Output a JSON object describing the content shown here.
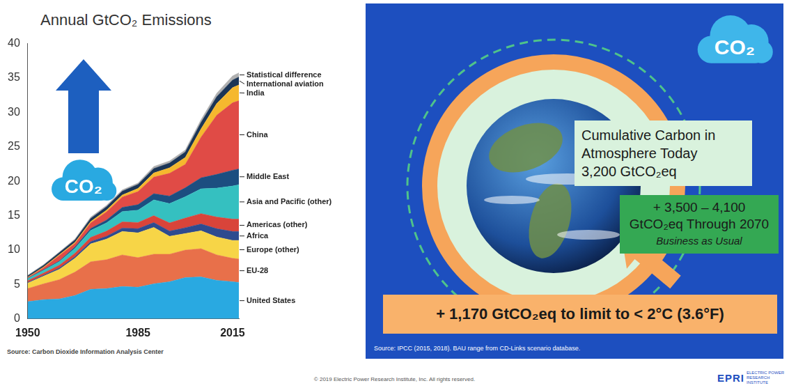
{
  "chart_data": {
    "type": "area",
    "title": "Annual GtCO₂ Emissions",
    "source": "Source: Carbon Dioxide Information Analysis Center",
    "annotations": [
      "CO₂"
    ],
    "stacked": true,
    "grid": false,
    "legend": "right",
    "x": [
      1950,
      1955,
      1960,
      1965,
      1970,
      1975,
      1980,
      1985,
      1990,
      1995,
      2000,
      2005,
      2010,
      2015,
      2017
    ],
    "xlim": [
      1950,
      2017
    ],
    "xticks": [
      1950,
      1985,
      2015
    ],
    "ylim": [
      0,
      40
    ],
    "yticks": [
      0,
      5,
      10,
      15,
      20,
      25,
      30,
      35,
      40
    ],
    "series": [
      {
        "name": "United States",
        "color": "#29a9e1",
        "values": [
          2.5,
          2.8,
          2.9,
          3.4,
          4.3,
          4.4,
          4.7,
          4.6,
          5.1,
          5.4,
          6.0,
          6.1,
          5.6,
          5.4,
          5.3
        ]
      },
      {
        "name": "EU-28",
        "color": "#e8704a",
        "values": [
          1.9,
          2.3,
          2.8,
          3.4,
          4.0,
          4.2,
          4.6,
          4.3,
          4.3,
          4.0,
          4.0,
          4.1,
          3.7,
          3.4,
          3.4
        ]
      },
      {
        "name": "Europe (other)",
        "color": "#f7d547",
        "values": [
          0.8,
          1.1,
          1.5,
          2.0,
          2.6,
          3.0,
          3.4,
          3.6,
          3.9,
          2.6,
          2.4,
          2.6,
          2.6,
          2.6,
          2.7
        ]
      },
      {
        "name": "Africa",
        "color": "#2e4b8f",
        "values": [
          0.1,
          0.15,
          0.2,
          0.25,
          0.35,
          0.4,
          0.5,
          0.6,
          0.7,
          0.75,
          0.85,
          1.0,
          1.2,
          1.3,
          1.3
        ]
      },
      {
        "name": "Americas (other)",
        "color": "#d9443a",
        "values": [
          0.25,
          0.3,
          0.4,
          0.5,
          0.6,
          0.75,
          0.9,
          0.9,
          1.0,
          1.2,
          1.4,
          1.5,
          1.7,
          1.8,
          1.8
        ]
      },
      {
        "name": "Asia and Pacific (other)",
        "color": "#35c0c0",
        "values": [
          0.3,
          0.4,
          0.5,
          0.7,
          1.0,
          1.2,
          1.5,
          1.8,
          2.3,
          2.8,
          3.1,
          3.6,
          4.2,
          4.8,
          5.0
        ]
      },
      {
        "name": "Middle East",
        "color": "#1c4e80",
        "values": [
          0.05,
          0.08,
          0.1,
          0.2,
          0.3,
          0.4,
          0.6,
          0.8,
          0.9,
          1.1,
          1.3,
          1.6,
          2.0,
          2.3,
          2.3
        ]
      },
      {
        "name": "China",
        "color": "#e04b46",
        "values": [
          0.08,
          0.3,
          0.8,
          0.5,
          0.8,
          1.2,
          1.5,
          1.9,
          2.4,
          3.3,
          3.4,
          5.9,
          8.6,
          9.8,
          9.9
        ]
      },
      {
        "name": "India",
        "color": "#f5b82e",
        "values": [
          0.07,
          0.1,
          0.12,
          0.17,
          0.2,
          0.25,
          0.3,
          0.45,
          0.6,
          0.8,
          1.0,
          1.2,
          1.7,
          2.2,
          2.3
        ]
      },
      {
        "name": "International aviation",
        "color": "#1b3556",
        "values": [
          0.2,
          0.25,
          0.3,
          0.35,
          0.45,
          0.5,
          0.55,
          0.6,
          0.65,
          0.7,
          0.8,
          0.95,
          1.0,
          1.1,
          1.15
        ]
      },
      {
        "name": "Statistical difference",
        "color": "#b0b0b0",
        "values": [
          0.1,
          0.1,
          0.1,
          0.15,
          0.2,
          0.2,
          0.2,
          0.2,
          0.3,
          0.3,
          0.3,
          0.4,
          0.5,
          0.6,
          0.6
        ]
      }
    ]
  },
  "diagram": {
    "icon_label": "CO₂",
    "cumulative": {
      "lines": [
        "Cumulative Carbon in",
        "Atmosphere Today",
        "3,200 GtCO₂eq"
      ]
    },
    "business_as_usual": {
      "lines": [
        "+ 3,500 – 4,100",
        "GtCO₂eq Through 2070"
      ],
      "note": "Business as Usual"
    },
    "limit": "+ 1,170 GtCO₂eq to limit to < 2°C (3.6°F)",
    "source": "Source: IPCC (2015, 2018). BAU range from CD-Links scenario database."
  },
  "footer": {
    "copyright": "© 2019 Electric Power Research Institute, Inc. All rights reserved.",
    "logo": "EPRI",
    "logo_subtitle": "ELECTRIC POWER RESEARCH INSTITUTE"
  }
}
